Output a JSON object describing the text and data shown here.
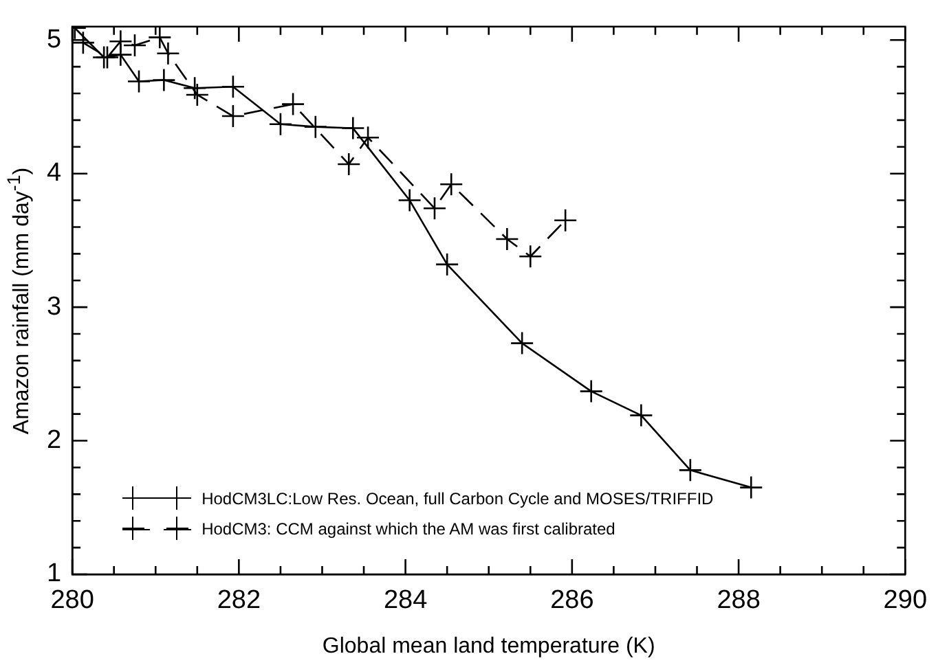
{
  "chart_data": {
    "type": "line",
    "xlabel": "Global mean land temperature (K)",
    "ylabel": "Amazon rainfall (mm day$^{-1}$)",
    "xlim": [
      280,
      290
    ],
    "ylim": [
      1,
      5.1
    ],
    "xticks": [
      280,
      {
        "value": 280.5,
        "label": null
      },
      {
        "value": 281,
        "label": null
      },
      {
        "value": 281.5,
        "label": null
      },
      282,
      {
        "value": 282.5,
        "label": null
      },
      {
        "value": 283,
        "label": null
      },
      {
        "value": 283.5,
        "label": null
      },
      284,
      {
        "value": 284.5,
        "label": null
      },
      {
        "value": 285,
        "label": null
      },
      {
        "value": 285.5,
        "label": null
      },
      286,
      {
        "value": 286.5,
        "label": null
      },
      {
        "value": 287,
        "label": null
      },
      {
        "value": 287.5,
        "label": null
      },
      288,
      {
        "value": 288.5,
        "label": null
      },
      {
        "value": 289,
        "label": null
      },
      {
        "value": 289.5,
        "label": null
      },
      290
    ],
    "yticks": [
      1,
      {
        "value": 1.2,
        "label": null
      },
      {
        "value": 1.4,
        "label": null
      },
      {
        "value": 1.6,
        "label": null
      },
      {
        "value": 1.8,
        "label": null
      },
      2,
      {
        "value": 2.2,
        "label": null
      },
      {
        "value": 2.4,
        "label": null
      },
      {
        "value": 2.6,
        "label": null
      },
      {
        "value": 2.8,
        "label": null
      },
      3,
      {
        "value": 3.2,
        "label": null
      },
      {
        "value": 3.4,
        "label": null
      },
      {
        "value": 3.6,
        "label": null
      },
      {
        "value": 3.8,
        "label": null
      },
      4,
      {
        "value": 4.2,
        "label": null
      },
      {
        "value": 4.4,
        "label": null
      },
      {
        "value": 4.6,
        "label": null
      },
      {
        "value": 4.8,
        "label": null
      },
      5
    ],
    "grid": false,
    "legend": "bottom left",
    "marker": "cross",
    "series": [
      {
        "name": "HodCM3LC:Low Res. Ocean, full Carbon Cycle and MOSES/TRIFFID",
        "color": "#000000",
        "line_style": "solid",
        "x": [
          280.03,
          280.38,
          280.58,
          280.8,
          281.1,
          281.47,
          281.93,
          282.5,
          282.92,
          283.37,
          284.05,
          284.5,
          285.4,
          286.23,
          286.83,
          287.42,
          288.15
        ],
        "values": [
          5.09,
          4.87,
          4.89,
          4.69,
          4.7,
          4.64,
          4.65,
          4.37,
          4.35,
          4.34,
          3.8,
          3.32,
          2.73,
          2.37,
          2.19,
          1.78,
          1.65
        ]
      },
      {
        "name": "HodCM3: CCM against which the AM was first calibrated",
        "color": "#000000",
        "line_style": "dashed",
        "x": [
          280.13,
          280.42,
          280.58,
          280.75,
          281.05,
          281.15,
          281.5,
          281.93,
          282.65,
          283.32,
          283.55,
          284.35,
          284.55,
          285.22,
          285.5,
          285.92
        ],
        "values": [
          4.98,
          4.87,
          4.99,
          4.96,
          5.02,
          4.9,
          4.59,
          4.43,
          4.52,
          4.07,
          4.27,
          3.74,
          3.92,
          3.51,
          3.38,
          3.65
        ]
      }
    ]
  }
}
